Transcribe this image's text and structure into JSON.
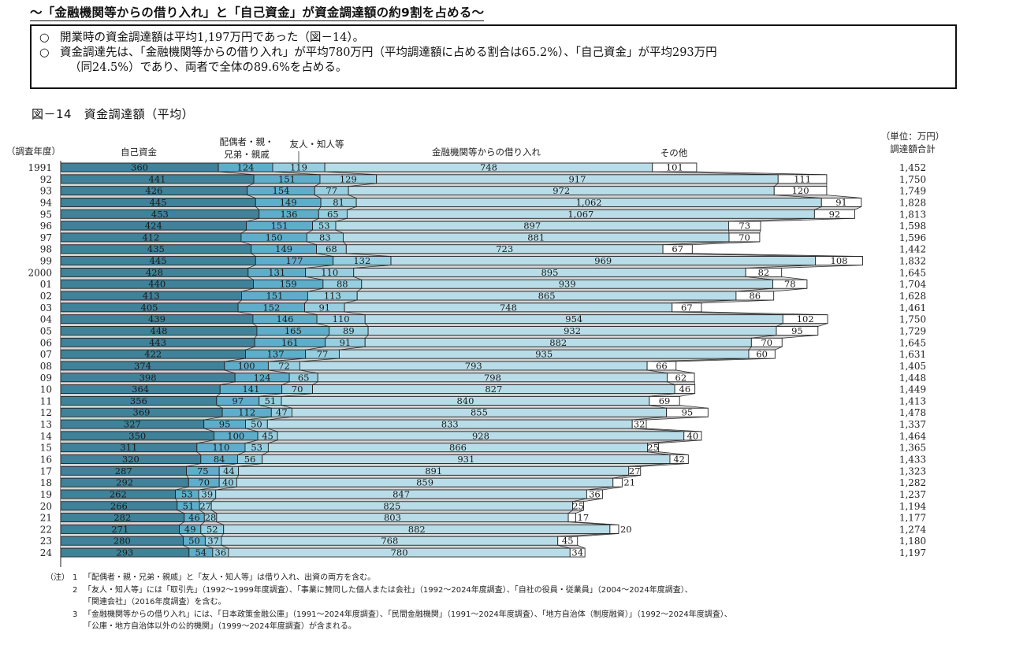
{
  "headline": "～「金融機関等からの借り入れ」と「自己資金」が資金調達額の約9割を占める～",
  "summary": {
    "bullet": "○",
    "lines": [
      "開業時の資金調達額は平均1,197万円であった（図－14）。",
      "資金調達先は、「金融機関等からの借り入れ」が平均780万円（平均調達額に占める割合は65.2%）、「自己資金」が平均293万円",
      "（同24.5%）であり、両者で全体の89.6%を占める。"
    ]
  },
  "figure_title": "図－14　資金調達額（平均）",
  "chart_data": {
    "type": "bar",
    "orientation": "horizontal",
    "stacked": true,
    "title": "資金調達額（平均）",
    "unit_label": "（単位：万円）",
    "ylabel": "（調査年度）",
    "total_header": "調達額合計",
    "categories": [
      "1991",
      "92",
      "93",
      "94",
      "95",
      "96",
      "97",
      "98",
      "99",
      "2000",
      "01",
      "02",
      "03",
      "04",
      "05",
      "06",
      "07",
      "08",
      "09",
      "10",
      "11",
      "12",
      "13",
      "14",
      "15",
      "16",
      "17",
      "18",
      "19",
      "20",
      "21",
      "22",
      "23",
      "24"
    ],
    "series": [
      {
        "name": "自己資金",
        "header": "自己資金",
        "color": "#3f8299",
        "values": [
          360,
          441,
          426,
          445,
          453,
          424,
          412,
          435,
          445,
          428,
          440,
          413,
          405,
          439,
          448,
          443,
          422,
          374,
          398,
          364,
          356,
          369,
          327,
          350,
          311,
          320,
          287,
          292,
          262,
          266,
          282,
          271,
          280,
          293
        ]
      },
      {
        "name": "配偶者・親・兄弟・親戚",
        "header_lines": [
          "配偶者・親・",
          "兄弟・親戚"
        ],
        "color": "#5eaecb",
        "values": [
          124,
          151,
          154,
          149,
          136,
          151,
          150,
          149,
          177,
          131,
          159,
          151,
          152,
          146,
          165,
          161,
          137,
          100,
          124,
          141,
          97,
          112,
          95,
          100,
          110,
          84,
          75,
          70,
          53,
          51,
          46,
          49,
          50,
          54
        ]
      },
      {
        "name": "友人・知人等",
        "header": "友人・知人等",
        "color": "#97cfe0",
        "values": [
          119,
          129,
          77,
          81,
          65,
          53,
          83,
          68,
          132,
          110,
          88,
          113,
          91,
          110,
          89,
          91,
          77,
          72,
          65,
          70,
          51,
          47,
          50,
          45,
          53,
          56,
          44,
          40,
          39,
          27,
          28,
          52,
          37,
          36
        ]
      },
      {
        "name": "金融機関等からの借り入れ",
        "header": "金融機関等からの借り入れ",
        "color": "#b9dde8",
        "values": [
          748,
          917,
          972,
          1062,
          1067,
          897,
          881,
          723,
          969,
          895,
          939,
          865,
          748,
          954,
          932,
          882,
          935,
          793,
          798,
          827,
          840,
          855,
          833,
          928,
          866,
          931,
          891,
          859,
          847,
          825,
          803,
          882,
          768,
          780
        ]
      },
      {
        "name": "その他",
        "header": "その他",
        "color": "#ffffff",
        "values": [
          101,
          111,
          120,
          91,
          92,
          73,
          70,
          67,
          108,
          82,
          78,
          86,
          67,
          102,
          95,
          70,
          60,
          66,
          62,
          46,
          69,
          95,
          32,
          40,
          25,
          42,
          27,
          21,
          36,
          25,
          17,
          20,
          45,
          34
        ]
      }
    ],
    "totals": [
      "1,452",
      "1,750",
      "1,749",
      "1,828",
      "1,813",
      "1,598",
      "1,596",
      "1,442",
      "1,832",
      "1,645",
      "1,704",
      "1,628",
      "1,461",
      "1,750",
      "1,729",
      "1,645",
      "1,631",
      "1,405",
      "1,448",
      "1,449",
      "1,413",
      "1,478",
      "1,337",
      "1,464",
      "1,365",
      "1,433",
      "1,323",
      "1,282",
      "1,237",
      "1,194",
      "1,177",
      "1,274",
      "1,180",
      "1,197"
    ],
    "value_labels": [
      [
        "360",
        "124",
        "119",
        "748",
        "101"
      ],
      [
        "441",
        "151",
        "129",
        "917",
        "111"
      ],
      [
        "426",
        "154",
        "77",
        "972",
        "120"
      ],
      [
        "445",
        "149",
        "81",
        "1,062",
        "91"
      ],
      [
        "453",
        "136",
        "65",
        "1,067",
        "92"
      ],
      [
        "424",
        "151",
        "53",
        "897",
        "73"
      ],
      [
        "412",
        "150",
        "83",
        "881",
        "70"
      ],
      [
        "435",
        "149",
        "68",
        "723",
        "67"
      ],
      [
        "445",
        "177",
        "132",
        "969",
        "108"
      ],
      [
        "428",
        "131",
        "110",
        "895",
        "82"
      ],
      [
        "440",
        "159",
        "88",
        "939",
        "78"
      ],
      [
        "413",
        "151",
        "113",
        "865",
        "86"
      ],
      [
        "405",
        "152",
        "91",
        "748",
        "67"
      ],
      [
        "439",
        "146",
        "110",
        "954",
        "102"
      ],
      [
        "448",
        "165",
        "89",
        "932",
        "95"
      ],
      [
        "443",
        "161",
        "91",
        "882",
        "70"
      ],
      [
        "422",
        "137",
        "77",
        "935",
        "60"
      ],
      [
        "374",
        "100",
        "72",
        "793",
        "66"
      ],
      [
        "398",
        "124",
        "65",
        "798",
        "62"
      ],
      [
        "364",
        "141",
        "70",
        "827",
        "46"
      ],
      [
        "356",
        "97",
        "51",
        "840",
        "69"
      ],
      [
        "369",
        "112",
        "47",
        "855",
        "95"
      ],
      [
        "327",
        "95",
        "50",
        "833",
        "32"
      ],
      [
        "350",
        "100",
        "45",
        "928",
        "40"
      ],
      [
        "311",
        "110",
        "53",
        "866",
        "25"
      ],
      [
        "320",
        "84",
        "56",
        "931",
        "42"
      ],
      [
        "287",
        "75",
        "44",
        "891",
        "27"
      ],
      [
        "292",
        "70",
        "40",
        "859",
        "21"
      ],
      [
        "262",
        "53",
        "39",
        "847",
        "36"
      ],
      [
        "266",
        "51",
        "27",
        "825",
        "25"
      ],
      [
        "282",
        "46",
        "28",
        "803",
        "17"
      ],
      [
        "271",
        "49",
        "52",
        "882",
        "20"
      ],
      [
        "280",
        "50",
        "37",
        "768",
        "45"
      ],
      [
        "293",
        "54",
        "36",
        "780",
        "34"
      ]
    ],
    "grid": false,
    "legend": "column-headers"
  },
  "notes": {
    "prefix": "（注）",
    "items": [
      {
        "num": "1",
        "lines": [
          "「配偶者・親・兄弟・親戚」と「友人・知人等」は借り入れ、出資の両方を含む。"
        ]
      },
      {
        "num": "2",
        "lines": [
          "「友人・知人等」には「取引先」（1992～1999年度調査）、「事業に賛同した個人または会社」（1992～2024年度調査）、「自社の役員・従業員」（2004～2024年度調査）、",
          "「関連会社」（2016年度調査）を含む。"
        ]
      },
      {
        "num": "3",
        "lines": [
          "「金融機関等からの借り入れ」には、「日本政策金融公庫」（1991～2024年度調査）、「民間金融機関」（1991～2024年度調査）、「地方自治体（制度融資）」（1992～2024年度調査）、",
          "「公庫・地方自治体以外の公的機関」（1999～2024年度調査）が含まれる。"
        ]
      }
    ]
  }
}
